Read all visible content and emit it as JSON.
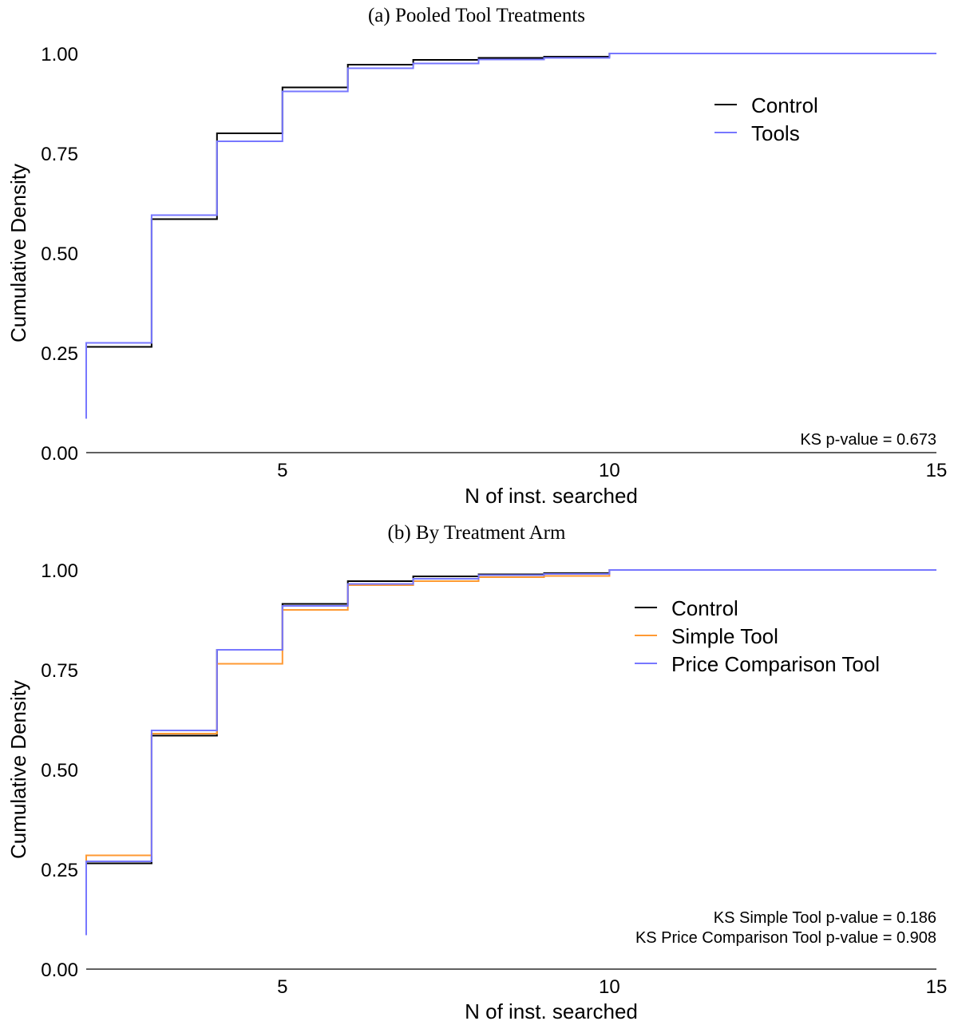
{
  "chart_data": [
    {
      "type": "line",
      "step": true,
      "title": "(a) Pooled Tool Treatments",
      "xlabel": "N of inst. searched",
      "ylabel": "Cumulative Density",
      "xlim": [
        2,
        15
      ],
      "ylim": [
        0,
        1
      ],
      "xticks": [
        5,
        10,
        15
      ],
      "xtick_labels": [
        "5",
        "10",
        "15"
      ],
      "yticks": [
        0,
        0.25,
        0.5,
        0.75,
        1
      ],
      "ytick_labels": [
        "0.00",
        "0.25",
        "0.50",
        "0.75",
        "1.00"
      ],
      "grid": false,
      "legend": "top-right",
      "series": [
        {
          "name": "Control",
          "color": "#000000",
          "x": [
            2,
            3,
            4,
            5,
            6,
            7,
            8,
            9,
            10,
            15
          ],
          "y": [
            0.265,
            0.585,
            0.8,
            0.915,
            0.972,
            0.984,
            0.989,
            0.992,
            1.0,
            1.0
          ]
        },
        {
          "name": "Tools",
          "color": "#7777ff",
          "x": [
            2,
            3,
            4,
            5,
            6,
            7,
            8,
            9,
            10,
            15
          ],
          "y": [
            0.275,
            0.595,
            0.78,
            0.905,
            0.963,
            0.975,
            0.985,
            0.989,
            1.0,
            1.0
          ]
        }
      ],
      "tools_start_y": 0.085,
      "annotations": [
        "KS p-value = 0.673"
      ]
    },
    {
      "type": "line",
      "step": true,
      "title": "(b) By Treatment Arm",
      "xlabel": "N of inst. searched",
      "ylabel": "Cumulative Density",
      "xlim": [
        2,
        15
      ],
      "ylim": [
        0,
        1
      ],
      "xticks": [
        5,
        10,
        15
      ],
      "xtick_labels": [
        "5",
        "10",
        "15"
      ],
      "yticks": [
        0,
        0.25,
        0.5,
        0.75,
        1
      ],
      "ytick_labels": [
        "0.00",
        "0.25",
        "0.50",
        "0.75",
        "1.00"
      ],
      "grid": false,
      "legend": "top-right",
      "series": [
        {
          "name": "Control",
          "color": "#000000",
          "x": [
            2,
            3,
            4,
            5,
            6,
            7,
            8,
            9,
            10,
            15
          ],
          "y": [
            0.265,
            0.585,
            0.8,
            0.915,
            0.972,
            0.984,
            0.989,
            0.992,
            1.0,
            1.0
          ]
        },
        {
          "name": "Simple Tool",
          "color": "#ff9933",
          "x": [
            2,
            3,
            4,
            5,
            6,
            7,
            8,
            9,
            10,
            15
          ],
          "y": [
            0.285,
            0.59,
            0.765,
            0.9,
            0.962,
            0.972,
            0.982,
            0.985,
            1.0,
            1.0
          ]
        },
        {
          "name": "Price Comparison Tool",
          "color": "#7777ff",
          "x": [
            2,
            3,
            4,
            5,
            6,
            7,
            8,
            9,
            10,
            15
          ],
          "y": [
            0.27,
            0.598,
            0.8,
            0.91,
            0.965,
            0.978,
            0.987,
            0.99,
            1.0,
            1.0
          ]
        }
      ],
      "tools_start_y": 0.085,
      "annotations": [
        "KS Simple Tool p-value = 0.186",
        "KS Price Comparison Tool p-value = 0.908"
      ]
    }
  ]
}
